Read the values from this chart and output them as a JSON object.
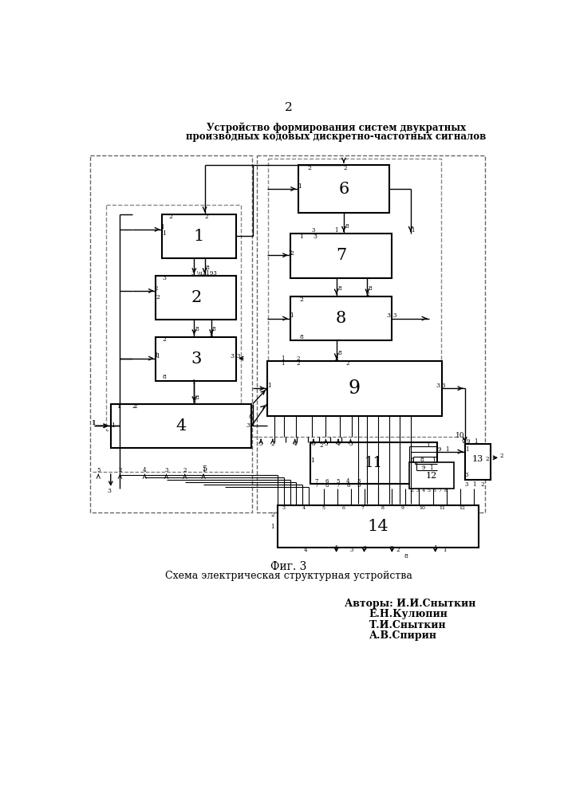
{
  "page_number": "2",
  "title_line1": "Устройство формирования систем двукратных",
  "title_line2": "производных кодовых дискретно-частотных сигналов",
  "fig_label": "Фиг. 3",
  "fig_caption": "Схема электрическая структурная устройства",
  "authors": [
    "Авторы: И.И.Сныткин",
    "Е.Н.Кулюпин",
    "Т.И.Сныткин",
    "А.В.Спирин"
  ],
  "background": "#ffffff"
}
